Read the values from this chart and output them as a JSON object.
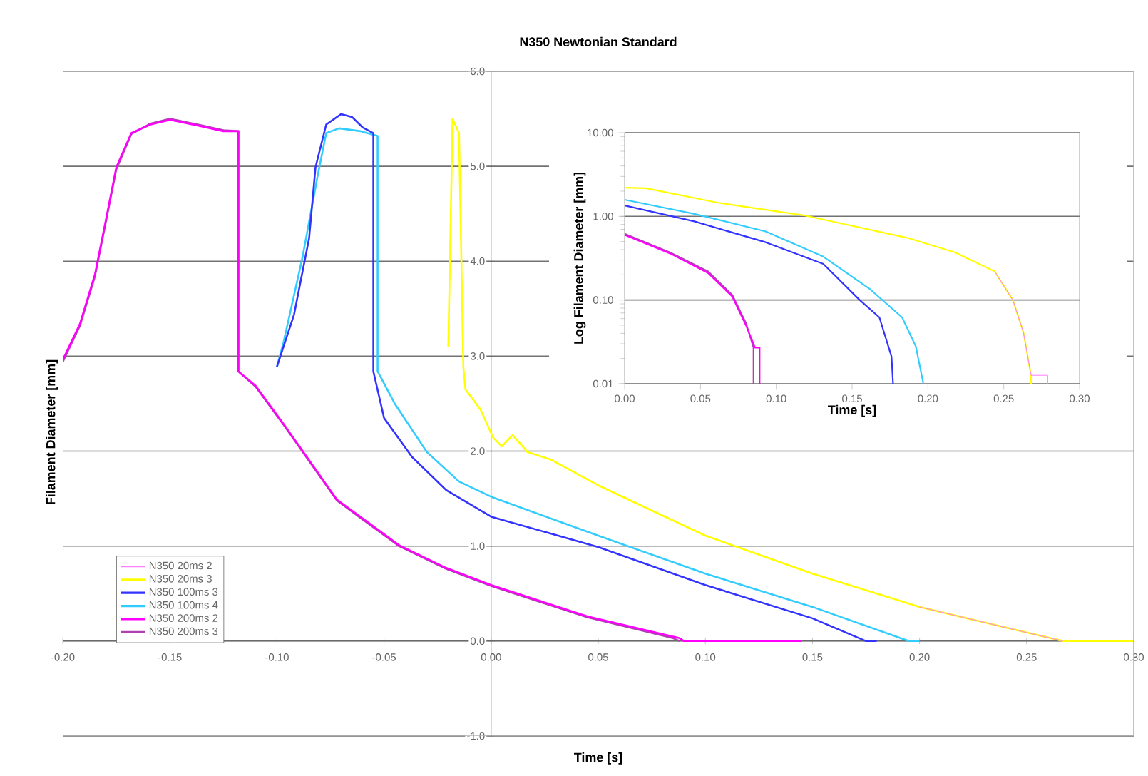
{
  "chart_data": [
    {
      "type": "line",
      "title": "N350 Newtonian Standard",
      "xlabel": "Time [s]",
      "ylabel": "Filament Diameter [mm]",
      "xlim": [
        -0.2,
        0.3
      ],
      "ylim": [
        -1,
        6
      ],
      "xticks": [
        {
          "value": -0.2,
          "label": "-0.20"
        },
        {
          "value": -0.15,
          "label": "-0.15"
        },
        {
          "value": -0.1,
          "label": "-0.10"
        },
        {
          "value": -0.05,
          "label": "-0.05"
        },
        {
          "value": 0,
          "label": "0.00"
        },
        {
          "value": 0.05,
          "label": "0.05"
        },
        {
          "value": 0.1,
          "label": "0.10"
        },
        {
          "value": 0.15,
          "label": "0.15"
        },
        {
          "value": 0.2,
          "label": "0.20"
        },
        {
          "value": 0.25,
          "label": "0.25"
        },
        {
          "value": 0.3,
          "label": "0.30"
        }
      ],
      "yticks": [
        {
          "value": -1,
          "label": "-1.0"
        },
        {
          "value": 0,
          "label": "0.0"
        },
        {
          "value": 1,
          "label": "1.0"
        },
        {
          "value": 2,
          "label": "2.0"
        },
        {
          "value": 3,
          "label": "3.0"
        },
        {
          "value": 4,
          "label": "4.0"
        },
        {
          "value": 5,
          "label": "5.0"
        },
        {
          "value": 6,
          "label": "6.0"
        }
      ],
      "grid": "y",
      "legend": "bottom left",
      "series": [
        {
          "name": "N350 20ms 2",
          "color": "#ff80ff",
          "x": [
            0.2,
            0.25,
            0.267
          ],
          "values": [
            0.36,
            0.09,
            0
          ]
        },
        {
          "name": "N350 20ms 3",
          "color": "#ffff00",
          "x": [
            -0.02,
            -0.018,
            -0.015,
            -0.013,
            -0.012,
            -0.005,
            0.001,
            0.005,
            0.01,
            0.017,
            0.028,
            0.05,
            0.1,
            0.15,
            0.2,
            0.25,
            0.267,
            0.3
          ],
          "values": [
            3.1,
            5.5,
            5.35,
            2.89,
            2.65,
            2.44,
            2.14,
            2.05,
            2.17,
            1.99,
            1.91,
            1.64,
            1.11,
            0.71,
            0.36,
            0.09,
            0,
            0
          ]
        },
        {
          "name": "N350 100ms 3",
          "color": "#3333ff",
          "x": [
            -0.1,
            -0.092,
            -0.085,
            -0.082,
            -0.077,
            -0.07,
            -0.065,
            -0.06,
            -0.055,
            -0.055,
            -0.05,
            -0.037,
            -0.021,
            0,
            0.05,
            0.1,
            0.15,
            0.175,
            0.18
          ],
          "values": [
            2.89,
            3.44,
            4.24,
            4.99,
            5.44,
            5.55,
            5.52,
            5.41,
            5.35,
            2.84,
            2.35,
            1.94,
            1.59,
            1.31,
            0.99,
            0.59,
            0.24,
            0,
            0
          ]
        },
        {
          "name": "N350 100ms 4",
          "color": "#33ccff",
          "x": [
            -0.1,
            -0.097,
            -0.088,
            -0.081,
            -0.077,
            -0.071,
            -0.061,
            -0.053,
            -0.053,
            -0.045,
            -0.03,
            -0.015,
            0,
            0.05,
            0.1,
            0.15,
            0.195,
            0.2
          ],
          "values": [
            2.89,
            3.14,
            4.05,
            4.9,
            5.35,
            5.4,
            5.37,
            5.32,
            2.84,
            2.5,
            1.99,
            1.68,
            1.52,
            1.11,
            0.71,
            0.36,
            0,
            0
          ]
        },
        {
          "name": "N350 200ms 2",
          "color": "#ff00ff",
          "x": [
            -0.2,
            -0.192,
            -0.185,
            -0.18,
            -0.175,
            -0.168,
            -0.159,
            -0.15,
            -0.137,
            -0.125,
            -0.118,
            -0.118,
            -0.11,
            -0.097,
            -0.072,
            -0.043,
            -0.021,
            0,
            0.045,
            0.088,
            0.09,
            0.145
          ],
          "values": [
            2.96,
            3.34,
            3.86,
            4.42,
            4.99,
            5.35,
            5.44,
            5.49,
            5.43,
            5.37,
            5.37,
            2.84,
            2.69,
            2.29,
            1.49,
            1.01,
            0.77,
            0.59,
            0.26,
            0.03,
            0,
            0
          ]
        },
        {
          "name": "N350 200ms 3",
          "color": "#b040b0",
          "x": [
            -0.2,
            -0.192,
            -0.185,
            -0.18,
            -0.175,
            -0.168,
            -0.159,
            -0.15,
            -0.137,
            -0.125,
            -0.118,
            -0.118,
            -0.11,
            -0.097,
            -0.072,
            -0.043,
            -0.021,
            0,
            0.045,
            0.085,
            0.088
          ],
          "values": [
            2.94,
            3.32,
            3.84,
            4.4,
            4.97,
            5.34,
            5.45,
            5.5,
            5.44,
            5.38,
            5.37,
            2.84,
            2.68,
            2.28,
            1.48,
            1.0,
            0.76,
            0.58,
            0.25,
            0.03,
            0
          ]
        }
      ]
    },
    {
      "type": "line",
      "xlabel": "Time [s]",
      "ylabel": "Log Filament Diameter [mm]",
      "xlim": [
        0,
        0.3
      ],
      "ylim": [
        0.01,
        10
      ],
      "log": "y",
      "xticks": [
        {
          "value": 0,
          "label": "0.00"
        },
        {
          "value": 0.05,
          "label": "0.05"
        },
        {
          "value": 0.1,
          "label": "0.10"
        },
        {
          "value": 0.15,
          "label": "0.15"
        },
        {
          "value": 0.2,
          "label": "0.20"
        },
        {
          "value": 0.25,
          "label": "0.25"
        },
        {
          "value": 0.3,
          "label": "0.30"
        }
      ],
      "yticks": [
        {
          "value": 0.01,
          "label": "0.01"
        },
        {
          "value": 0.1,
          "label": "0.10"
        },
        {
          "value": 1,
          "label": "1.00"
        },
        {
          "value": 10,
          "label": "10.00"
        }
      ],
      "grid": "y",
      "series": [
        {
          "color": "#ff80ff",
          "x": [
            0.244,
            0.256,
            0.263,
            0.268,
            0.279,
            0.279
          ],
          "values": [
            0.22,
            0.1,
            0.041,
            0.0126,
            0.0126,
            0.01
          ]
        },
        {
          "color": "#ffff00",
          "x": [
            0,
            0.014,
            0.061,
            0.118,
            0.187,
            0.218,
            0.244,
            0.256,
            0.263,
            0.268,
            0.268
          ],
          "values": [
            2.2,
            2.17,
            1.46,
            1.03,
            0.55,
            0.37,
            0.22,
            0.1,
            0.041,
            0.0126,
            0.01
          ]
        },
        {
          "color": "#3333ff",
          "x": [
            0,
            0.046,
            0.093,
            0.131,
            0.155,
            0.168,
            0.176,
            0.177
          ],
          "values": [
            1.35,
            0.87,
            0.49,
            0.27,
            0.1,
            0.062,
            0.021,
            0.01
          ]
        },
        {
          "color": "#33ccff",
          "x": [
            0,
            0.046,
            0.093,
            0.131,
            0.162,
            0.183,
            0.192,
            0.197
          ],
          "values": [
            1.58,
            1.07,
            0.66,
            0.33,
            0.134,
            0.062,
            0.028,
            0.01
          ]
        },
        {
          "color": "#ff00ff",
          "x": [
            0,
            0.03,
            0.055,
            0.071,
            0.08,
            0.086,
            0.089,
            0.089
          ],
          "values": [
            0.6,
            0.36,
            0.21,
            0.11,
            0.05,
            0.027,
            0.027,
            0.01
          ]
        },
        {
          "color": "#b040b0",
          "x": [
            0,
            0.03,
            0.055,
            0.071,
            0.08,
            0.085,
            0.085
          ],
          "values": [
            0.62,
            0.37,
            0.22,
            0.115,
            0.053,
            0.027,
            0.01
          ]
        }
      ]
    }
  ]
}
